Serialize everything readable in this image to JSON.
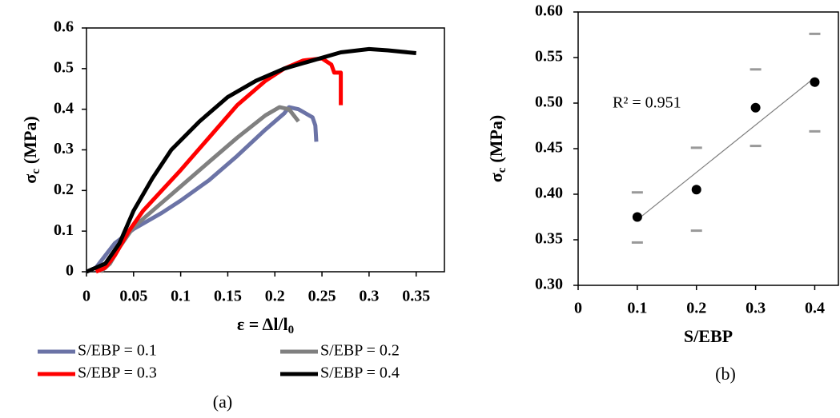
{
  "chart_data": [
    {
      "type": "line",
      "caption": "(a)",
      "xlabel": {
        "text": "ε = Δl/l",
        "subscript": "0"
      },
      "ylabel": {
        "symbol": "σ",
        "subscript": "c",
        "unit": "(MPa)"
      },
      "xlim": [
        0,
        0.38
      ],
      "xticks": [
        0,
        0.05,
        0.1,
        0.15,
        0.2,
        0.25,
        0.3,
        0.35
      ],
      "ylim": [
        0,
        0.6
      ],
      "yticks": [
        0,
        0.1,
        0.2,
        0.3,
        0.4,
        0.5,
        0.6
      ],
      "series": [
        {
          "name": "S/EBP = 0.1",
          "color": "#6b73a6",
          "x": [
            0,
            0.01,
            0.02,
            0.03,
            0.05,
            0.08,
            0.1,
            0.13,
            0.16,
            0.19,
            0.21,
            0.215,
            0.225,
            0.24,
            0.243,
            0.244
          ],
          "values": [
            0,
            0.01,
            0.04,
            0.07,
            0.105,
            0.145,
            0.175,
            0.225,
            0.285,
            0.35,
            0.39,
            0.405,
            0.4,
            0.38,
            0.36,
            0.32
          ]
        },
        {
          "name": "S/EBP = 0.2",
          "color": "#808080",
          "x": [
            0.015,
            0.025,
            0.035,
            0.05,
            0.08,
            0.1,
            0.13,
            0.16,
            0.19,
            0.205,
            0.215,
            0.225
          ],
          "values": [
            0,
            0.02,
            0.06,
            0.11,
            0.17,
            0.21,
            0.27,
            0.33,
            0.385,
            0.405,
            0.4,
            0.37
          ]
        },
        {
          "name": "S/EBP = 0.3",
          "color": "#ff0000",
          "x": [
            0.01,
            0.02,
            0.03,
            0.045,
            0.06,
            0.08,
            0.1,
            0.13,
            0.16,
            0.19,
            0.21,
            0.23,
            0.25,
            0.26,
            0.263,
            0.27,
            0.27
          ],
          "values": [
            0,
            0.01,
            0.04,
            0.1,
            0.15,
            0.2,
            0.25,
            0.33,
            0.41,
            0.47,
            0.5,
            0.52,
            0.525,
            0.51,
            0.49,
            0.49,
            0.41
          ]
        },
        {
          "name": "S/EBP = 0.4",
          "color": "#000000",
          "x": [
            0,
            0.02,
            0.035,
            0.05,
            0.07,
            0.09,
            0.12,
            0.15,
            0.18,
            0.21,
            0.24,
            0.27,
            0.3,
            0.32,
            0.35
          ],
          "values": [
            0,
            0.02,
            0.07,
            0.15,
            0.23,
            0.3,
            0.37,
            0.43,
            0.47,
            0.5,
            0.52,
            0.54,
            0.548,
            0.545,
            0.538
          ]
        }
      ]
    },
    {
      "type": "scatter",
      "caption": "(b)",
      "xlabel": {
        "text": "S/EBP"
      },
      "ylabel": {
        "symbol": "σ",
        "subscript": "c",
        "unit": "(MPa)"
      },
      "annotation": "R² = 0.951",
      "xlim": [
        0,
        0.44
      ],
      "xticks": [
        0,
        0.1,
        0.2,
        0.3,
        0.4
      ],
      "ylim": [
        0.3,
        0.6
      ],
      "yticks": [
        {
          "value": 0.3,
          "label": "0.30"
        },
        {
          "value": 0.35,
          "label": "0.35"
        },
        {
          "value": 0.4,
          "label": "0.40"
        },
        {
          "value": 0.45,
          "label": "0.45"
        },
        {
          "value": 0.5,
          "label": "0.50"
        },
        {
          "value": 0.55,
          "label": "0.55"
        },
        {
          "value": 0.6,
          "label": "0.60"
        }
      ],
      "x": [
        0.1,
        0.2,
        0.3,
        0.4
      ],
      "values": [
        0.375,
        0.405,
        0.495,
        0.523
      ],
      "error_upper": [
        0.402,
        0.451,
        0.537,
        0.576
      ],
      "error_lower": [
        0.347,
        0.36,
        0.453,
        0.469
      ],
      "color": "#000000",
      "error_color": "#999999",
      "trendline": {
        "x": [
          0.1,
          0.4
        ],
        "values": [
          0.372,
          0.528
        ],
        "color": "#808080"
      }
    }
  ]
}
